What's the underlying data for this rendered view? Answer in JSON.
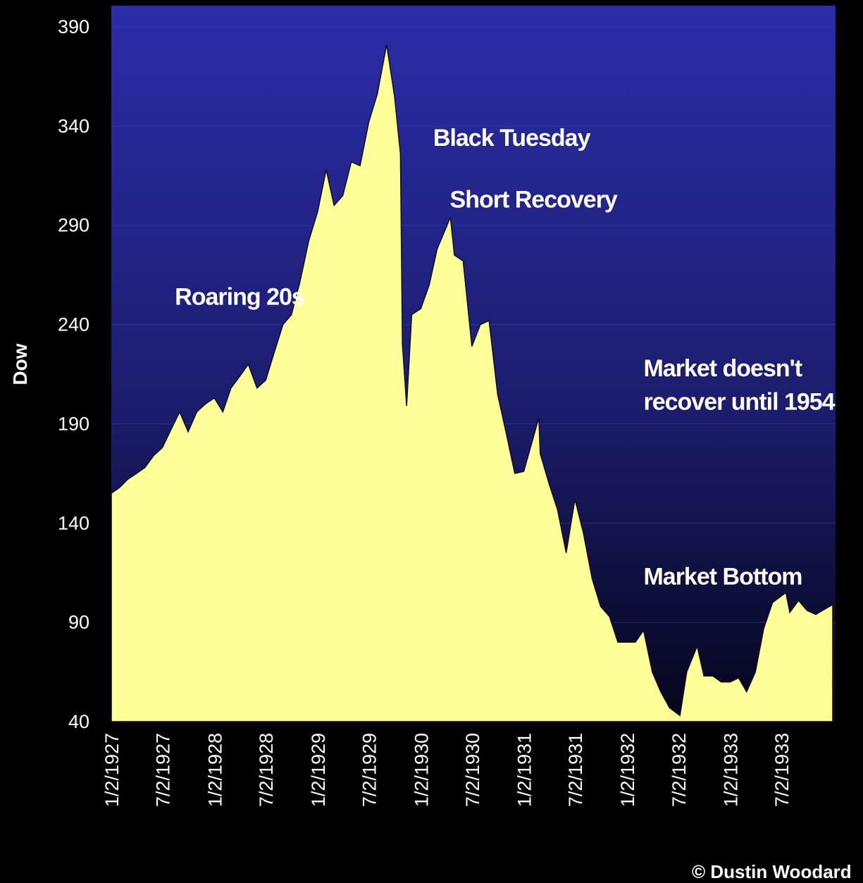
{
  "chart_data": {
    "type": "area",
    "ylabel": "Dow",
    "ylim": [
      40,
      390
    ],
    "yticks": [
      390,
      340,
      290,
      240,
      190,
      140,
      90,
      40
    ],
    "xlim": [
      "1/2/1927",
      "12/31/1933"
    ],
    "xticks": [
      "1/2/1927",
      "7/2/1927",
      "1/2/1928",
      "7/2/1928",
      "1/2/1929",
      "7/2/1929",
      "1/2/1930",
      "7/2/1930",
      "1/2/1931",
      "7/2/1931",
      "1/2/1932",
      "7/2/1932",
      "1/2/1933",
      "7/2/1933"
    ],
    "grid": true,
    "colors": {
      "fill": "#ffff99",
      "background_top": "#2b2ca8",
      "background_bottom": "#05051a",
      "page": "#000000"
    },
    "series": [
      {
        "x": [
          "1/2/1927",
          "2/1/1927",
          "3/1/1927",
          "4/1/1927",
          "5/1/1927",
          "6/1/1927",
          "7/2/1927",
          "8/1/1927",
          "9/1/1927",
          "10/1/1927",
          "11/1/1927",
          "12/1/1927",
          "1/2/1928",
          "2/1/1928",
          "3/1/1928",
          "4/1/1928",
          "5/1/1928",
          "6/1/1928",
          "7/2/1928",
          "8/1/1928",
          "9/1/1928",
          "10/1/1928",
          "11/1/1928",
          "12/1/1928",
          "1/2/1929",
          "2/1/1929",
          "3/1/1929",
          "4/1/1929",
          "5/1/1929",
          "6/1/1929",
          "7/2/1929",
          "8/1/1929",
          "9/3/1929",
          "10/1/1929",
          "10/22/1929",
          "10/29/1929",
          "11/13/1929",
          "12/1/1929",
          "1/2/1930",
          "2/1/1930",
          "3/1/1930",
          "4/17/1930",
          "5/1/1930",
          "6/1/1930",
          "7/2/1930",
          "8/1/1930",
          "9/1/1930",
          "10/1/1930",
          "11/1/1930",
          "12/1/1930",
          "1/2/1931",
          "2/24/1931",
          "3/1/1931",
          "4/1/1931",
          "5/1/1931",
          "6/1/1931",
          "7/2/1931",
          "8/1/1931",
          "9/1/1931",
          "10/1/1931",
          "11/1/1931",
          "12/1/1931",
          "1/2/1932",
          "2/1/1932",
          "3/1/1932",
          "4/1/1932",
          "5/1/1932",
          "6/1/1932",
          "7/8/1932",
          "8/1/1932",
          "9/7/1932",
          "10/1/1932",
          "11/1/1932",
          "12/1/1932",
          "1/2/1933",
          "2/1/1933",
          "3/1/1933",
          "4/1/1933",
          "5/1/1933",
          "6/1/1933",
          "7/18/1933",
          "8/1/1933",
          "9/1/1933",
          "10/1/1933",
          "11/1/1933",
          "12/31/1933"
        ],
        "values": [
          155,
          158,
          162,
          165,
          168,
          174,
          178,
          187,
          196,
          186,
          196,
          200,
          203,
          196,
          208,
          214,
          220,
          208,
          212,
          226,
          240,
          245,
          262,
          282,
          297,
          318,
          300,
          305,
          322,
          320,
          342,
          356,
          381,
          355,
          326,
          230,
          199,
          245,
          248,
          260,
          278,
          294,
          275,
          272,
          229,
          240,
          242,
          205,
          185,
          165,
          166,
          193,
          175,
          160,
          147,
          125,
          152,
          135,
          112,
          98,
          93,
          80,
          80,
          80,
          86,
          65,
          55,
          47,
          43,
          65,
          78,
          63,
          63,
          60,
          60,
          62,
          55,
          65,
          87,
          100,
          105,
          95,
          101,
          96,
          94,
          99
        ]
      }
    ],
    "annotations": [
      {
        "text": "Roaring 20s",
        "x": "8/15/1927",
        "y": 250
      },
      {
        "text": "Black Tuesday",
        "x": "2/15/1930",
        "y": 330
      },
      {
        "text": "Short Recovery",
        "x": "4/15/1930",
        "y": 299
      },
      {
        "text": "Market doesn't",
        "x": "3/1/1932",
        "y": 214
      },
      {
        "text": "recover until 1954",
        "x": "3/1/1932",
        "y": 197
      },
      {
        "text": "Market Bottom",
        "x": "3/1/1932",
        "y": 109
      }
    ]
  },
  "credit": "© Dustin Woodard"
}
